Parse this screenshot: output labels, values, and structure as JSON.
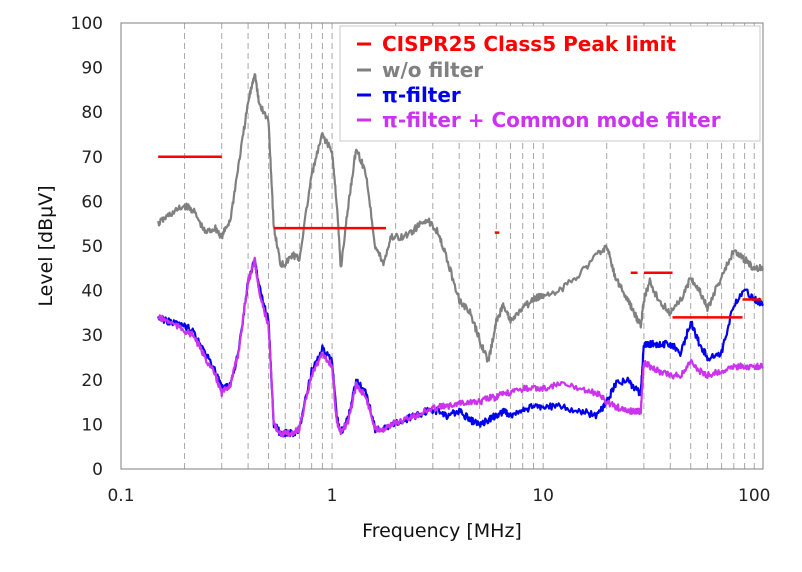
{
  "chart_data": {
    "type": "line",
    "title": "",
    "xlabel": "Frequency [MHz]",
    "ylabel": "Level [dBμV]",
    "x_scale": "log",
    "xlim": [
      0.1,
      110
    ],
    "ylim": [
      0,
      100
    ],
    "x_ticks": [
      0.1,
      1,
      10,
      100
    ],
    "x_tick_labels": [
      "0.1",
      "1",
      "10",
      "100"
    ],
    "y_ticks": [
      0,
      10,
      20,
      30,
      40,
      50,
      60,
      70,
      80,
      90,
      100
    ],
    "y_tick_labels": [
      "0",
      "10",
      "20",
      "30",
      "40",
      "50",
      "60",
      "70",
      "80",
      "90",
      "100"
    ],
    "grid": {
      "vertical": "dashed",
      "horizontal": false
    },
    "legend_position": "top-right",
    "series": [
      {
        "name": "CISPR25 Class5 Peak limit",
        "color": "#ff0000",
        "style": "segments",
        "segments": [
          {
            "x": [
              0.15,
              0.3
            ],
            "y": 70
          },
          {
            "x": [
              0.53,
              1.8
            ],
            "y": 54
          },
          {
            "x": [
              5.9,
              6.2
            ],
            "y": 53
          },
          {
            "x": [
              26,
              28
            ],
            "y": 44
          },
          {
            "x": [
              30,
              41
            ],
            "y": 44
          },
          {
            "x": [
              41,
              88
            ],
            "y": 34
          },
          {
            "x": [
              88,
              108
            ],
            "y": 38
          }
        ]
      },
      {
        "name": "w/o filter",
        "color": "#808080",
        "x": [
          0.15,
          0.17,
          0.2,
          0.22,
          0.25,
          0.28,
          0.3,
          0.33,
          0.36,
          0.4,
          0.43,
          0.45,
          0.5,
          0.53,
          0.57,
          0.6,
          0.65,
          0.7,
          0.8,
          0.9,
          1.0,
          1.05,
          1.1,
          1.2,
          1.3,
          1.45,
          1.6,
          1.75,
          1.9,
          2.2,
          2.5,
          2.8,
          3.2,
          3.5,
          4.0,
          4.5,
          5.0,
          5.5,
          6.0,
          6.5,
          7.0,
          8.0,
          9.0,
          10,
          12,
          15,
          18,
          20,
          22,
          25,
          27,
          29,
          30,
          32,
          35,
          40,
          45,
          50,
          55,
          60,
          70,
          80,
          90,
          100,
          110
        ],
        "y": [
          55,
          57,
          59,
          58,
          53,
          54,
          52,
          56,
          68,
          82,
          89,
          82,
          78,
          54,
          46,
          46,
          48,
          47,
          66,
          75,
          71,
          60,
          45,
          60,
          72,
          66,
          50,
          46,
          52,
          52,
          54,
          56,
          53,
          47,
          38,
          35,
          29,
          24,
          33,
          37,
          33,
          36,
          38,
          39,
          40,
          44,
          48,
          50,
          43,
          38,
          35,
          32,
          38,
          42,
          38,
          35,
          38,
          43,
          40,
          36,
          43,
          49,
          47,
          45,
          45
        ]
      },
      {
        "name": "π-filter",
        "color": "#0000ee",
        "x": [
          0.15,
          0.17,
          0.2,
          0.22,
          0.25,
          0.28,
          0.3,
          0.33,
          0.36,
          0.4,
          0.43,
          0.45,
          0.5,
          0.53,
          0.57,
          0.6,
          0.65,
          0.7,
          0.8,
          0.9,
          1.0,
          1.05,
          1.1,
          1.2,
          1.3,
          1.45,
          1.6,
          1.75,
          1.9,
          2.2,
          2.5,
          2.8,
          3.2,
          3.5,
          4.0,
          4.5,
          5.0,
          5.5,
          6.0,
          6.5,
          7.0,
          8.0,
          9.0,
          10,
          12,
          15,
          18,
          20,
          22,
          25,
          27,
          29,
          30,
          32,
          35,
          40,
          45,
          50,
          55,
          60,
          70,
          80,
          90,
          100,
          110
        ],
        "y": [
          34,
          33,
          32,
          31,
          26,
          22,
          18,
          19,
          26,
          42,
          47,
          41,
          33,
          10,
          8,
          8,
          8,
          9,
          22,
          27,
          24,
          12,
          8,
          12,
          20,
          17,
          9,
          9,
          10,
          11,
          12,
          13,
          13,
          12,
          13,
          11,
          10,
          11,
          12,
          13,
          12,
          13,
          14,
          14,
          14,
          13,
          12,
          15,
          19,
          20,
          18,
          17,
          28,
          28,
          28,
          28,
          26,
          33,
          28,
          25,
          26,
          37,
          40,
          38,
          37
        ]
      },
      {
        "name": "π-filter + Common mode filter",
        "color": "#cc33ee",
        "x": [
          0.15,
          0.17,
          0.2,
          0.22,
          0.25,
          0.28,
          0.3,
          0.33,
          0.36,
          0.4,
          0.43,
          0.45,
          0.5,
          0.53,
          0.57,
          0.6,
          0.65,
          0.7,
          0.8,
          0.9,
          1.0,
          1.05,
          1.1,
          1.2,
          1.3,
          1.45,
          1.6,
          1.75,
          1.9,
          2.2,
          2.5,
          2.8,
          3.2,
          3.5,
          4.0,
          4.5,
          5.0,
          5.5,
          6.0,
          6.5,
          7.0,
          8.0,
          9.0,
          10,
          12,
          15,
          18,
          20,
          22,
          25,
          27,
          29,
          30,
          32,
          35,
          40,
          45,
          50,
          55,
          60,
          70,
          80,
          90,
          100,
          110
        ],
        "y": [
          34,
          33,
          31,
          30,
          25,
          21,
          17,
          19,
          26,
          42,
          47,
          40,
          32,
          10,
          8,
          8,
          8,
          9,
          21,
          26,
          23,
          11,
          8,
          11,
          19,
          16,
          9,
          9,
          10,
          11,
          12,
          13,
          14,
          14,
          15,
          15,
          15,
          16,
          16,
          17,
          17,
          18,
          18,
          18,
          19,
          18,
          17,
          15,
          14,
          13,
          13,
          13,
          24,
          23,
          22,
          21,
          21,
          24,
          22,
          21,
          22,
          23,
          23,
          23,
          23
        ]
      }
    ]
  }
}
